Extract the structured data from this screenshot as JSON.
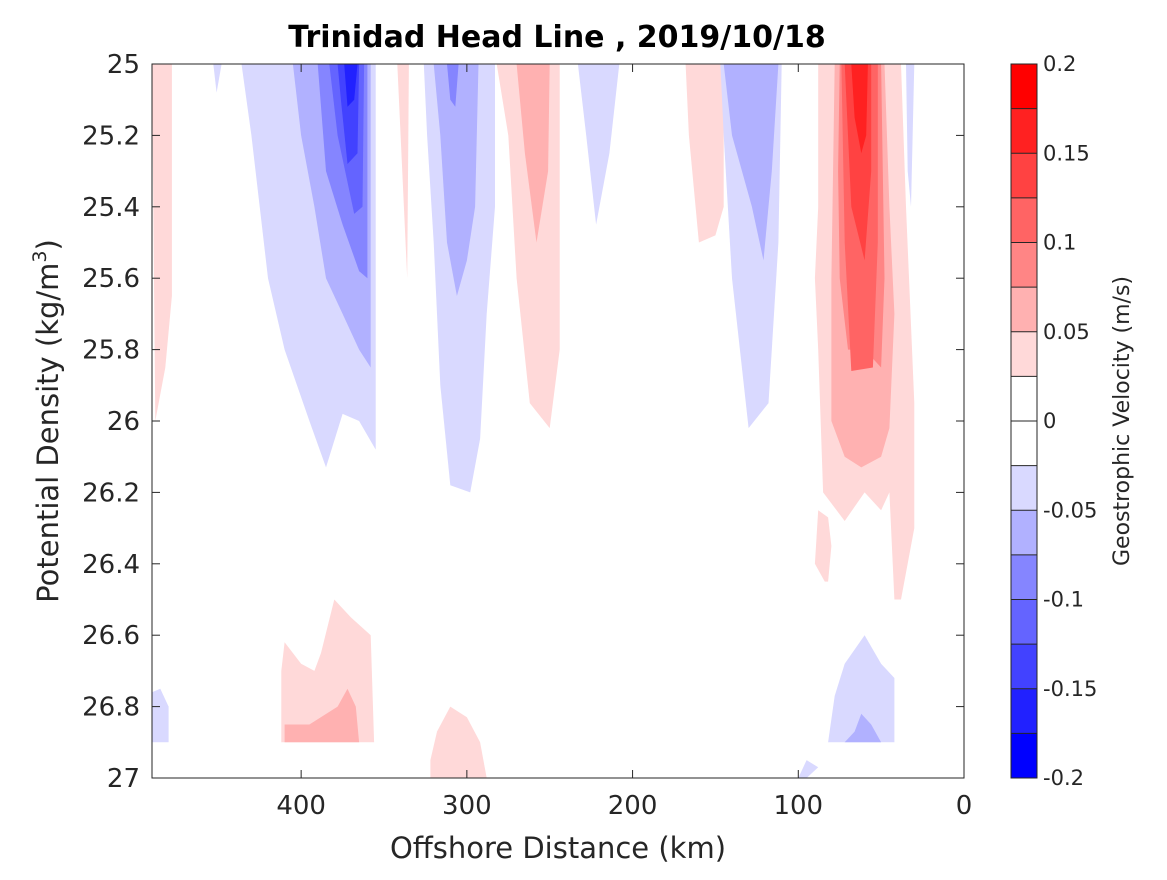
{
  "chart_data": {
    "type": "contourf",
    "title": "Trinidad Head Line , 2019/10/18",
    "xlabel": "Offshore Distance (km)",
    "ylabel": "Potential Density (kg/m",
    "ylabel_sup": "3",
    "ylabel_close": ")",
    "xlim": [
      490,
      0
    ],
    "ylim": [
      27,
      25
    ],
    "y_reversed": true,
    "x_reversed": true,
    "xticks": [
      400,
      300,
      200,
      100,
      0
    ],
    "xtick_labels": [
      "400",
      "300",
      "200",
      "100",
      "0"
    ],
    "yticks": [
      25,
      25.2,
      25.4,
      25.6,
      25.8,
      26,
      26.2,
      26.4,
      26.6,
      26.8,
      27
    ],
    "ytick_labels": [
      "25",
      "25.2",
      "25.4",
      "25.6",
      "25.8",
      "26",
      "26.2",
      "26.4",
      "26.6",
      "26.8",
      "27"
    ],
    "colorbar": {
      "label": "Geostrophic Velocity (m/s)",
      "range": [
        -0.2,
        0.2
      ],
      "ticks": [
        0.2,
        0.15,
        0.1,
        0.05,
        0,
        -0.05,
        -0.1,
        -0.15,
        -0.2
      ],
      "tick_labels": [
        "0.2",
        "0.15",
        "0.1",
        "0.05",
        "0",
        "-0.05",
        "-0.1",
        "-0.15",
        "-0.2"
      ],
      "levels": [
        {
          "min": 0.175,
          "max": 0.2,
          "color": "#ff0000"
        },
        {
          "min": 0.15,
          "max": 0.175,
          "color": "#ff2121"
        },
        {
          "min": 0.125,
          "max": 0.15,
          "color": "#ff4242"
        },
        {
          "min": 0.1,
          "max": 0.125,
          "color": "#ff6464"
        },
        {
          "min": 0.075,
          "max": 0.1,
          "color": "#ff8585"
        },
        {
          "min": 0.05,
          "max": 0.075,
          "color": "#ffb1b1"
        },
        {
          "min": 0.025,
          "max": 0.05,
          "color": "#ffd9d9"
        },
        {
          "min": 0,
          "max": 0.025,
          "color": "#ffffff"
        },
        {
          "min": -0.025,
          "max": 0,
          "color": "#ffffff"
        },
        {
          "min": -0.05,
          "max": -0.025,
          "color": "#d9d9ff"
        },
        {
          "min": -0.075,
          "max": -0.05,
          "color": "#b1b1ff"
        },
        {
          "min": -0.1,
          "max": -0.075,
          "color": "#8585ff"
        },
        {
          "min": -0.125,
          "max": -0.1,
          "color": "#6464ff"
        },
        {
          "min": -0.15,
          "max": -0.125,
          "color": "#4242ff"
        },
        {
          "min": -0.175,
          "max": -0.15,
          "color": "#2121ff"
        },
        {
          "min": -0.2,
          "max": -0.175,
          "color": "#0000ff"
        }
      ]
    },
    "regions": [
      {
        "level": 0.0375,
        "points": [
          [
            490,
            25
          ],
          [
            478,
            25
          ],
          [
            478,
            25.65
          ],
          [
            482,
            25.85
          ],
          [
            488,
            26
          ]
        ]
      },
      {
        "level": 0.0375,
        "points": [
          [
            342,
            25
          ],
          [
            335,
            25
          ],
          [
            336,
            25.6
          ],
          [
            338,
            25.4
          ]
        ]
      },
      {
        "level": 0.0375,
        "points": [
          [
            282,
            25
          ],
          [
            244,
            25
          ],
          [
            244,
            25.8
          ],
          [
            250,
            26.02
          ],
          [
            262,
            25.95
          ],
          [
            270,
            25.6
          ],
          [
            275,
            25.2
          ]
        ]
      },
      {
        "level": 0.0625,
        "points": [
          [
            270,
            25
          ],
          [
            250,
            25
          ],
          [
            251,
            25.3
          ],
          [
            258,
            25.5
          ],
          [
            265,
            25.25
          ]
        ]
      },
      {
        "level": 0.0375,
        "points": [
          [
            168,
            25
          ],
          [
            145,
            25
          ],
          [
            145,
            25.4
          ],
          [
            150,
            25.48
          ],
          [
            160,
            25.5
          ],
          [
            166,
            25.2
          ]
        ]
      },
      {
        "level": 0.0375,
        "points": [
          [
            88,
            25
          ],
          [
            38,
            25
          ],
          [
            35,
            25.4
          ],
          [
            30,
            25.95
          ],
          [
            30,
            26.3
          ],
          [
            38,
            26.5
          ],
          [
            42,
            26.5
          ],
          [
            45,
            26.2
          ],
          [
            50,
            26.25
          ],
          [
            60,
            26.2
          ],
          [
            72,
            26.28
          ],
          [
            85,
            26.2
          ],
          [
            88,
            25.8
          ],
          [
            90,
            25.6
          ],
          [
            88,
            25.4
          ]
        ]
      },
      {
        "level": 0.0625,
        "points": [
          [
            78,
            25
          ],
          [
            48,
            25
          ],
          [
            45,
            25.4
          ],
          [
            42,
            25.7
          ],
          [
            45,
            26.02
          ],
          [
            50,
            26.1
          ],
          [
            62,
            26.13
          ],
          [
            72,
            26.1
          ],
          [
            80,
            26.0
          ],
          [
            80,
            25.6
          ]
        ]
      },
      {
        "level": 0.0875,
        "points": [
          [
            75,
            25
          ],
          [
            50,
            25
          ],
          [
            48,
            25.6
          ],
          [
            50,
            25.85
          ],
          [
            60,
            25.8
          ],
          [
            70,
            25.8
          ],
          [
            75,
            25.6
          ],
          [
            76,
            25.3
          ]
        ]
      },
      {
        "level": 0.1125,
        "points": [
          [
            74,
            25
          ],
          [
            52,
            25
          ],
          [
            52,
            25.5
          ],
          [
            55,
            25.85
          ],
          [
            68,
            25.86
          ],
          [
            72,
            25.5
          ]
        ]
      },
      {
        "level": 0.1375,
        "points": [
          [
            72,
            25
          ],
          [
            56,
            25
          ],
          [
            56,
            25.3
          ],
          [
            60,
            25.55
          ],
          [
            68,
            25.4
          ],
          [
            70,
            25.2
          ]
        ]
      },
      {
        "level": 0.1625,
        "points": [
          [
            68,
            25
          ],
          [
            58,
            25
          ],
          [
            59,
            25.2
          ],
          [
            62,
            25.25
          ],
          [
            66,
            25.15
          ]
        ]
      },
      {
        "level": 0.0375,
        "points": [
          [
            88,
            26.25
          ],
          [
            82,
            26.27
          ],
          [
            80,
            26.35
          ],
          [
            82,
            26.45
          ],
          [
            84,
            26.45
          ],
          [
            90,
            26.4
          ]
        ]
      },
      {
        "level": 0.0375,
        "points": [
          [
            412,
            26.9
          ],
          [
            356,
            26.9
          ],
          [
            358,
            26.6
          ],
          [
            370,
            26.55
          ],
          [
            380,
            26.5
          ],
          [
            388,
            26.65
          ],
          [
            392,
            26.7
          ],
          [
            400,
            26.68
          ],
          [
            410,
            26.62
          ],
          [
            412,
            26.7
          ]
        ]
      },
      {
        "level": 0.0625,
        "points": [
          [
            410,
            26.9
          ],
          [
            365,
            26.9
          ],
          [
            367,
            26.8
          ],
          [
            372,
            26.75
          ],
          [
            378,
            26.8
          ],
          [
            395,
            26.85
          ],
          [
            410,
            26.85
          ]
        ]
      },
      {
        "level": 0.0375,
        "points": [
          [
            322,
            27
          ],
          [
            288,
            27
          ],
          [
            292,
            26.9
          ],
          [
            300,
            26.83
          ],
          [
            310,
            26.8
          ],
          [
            318,
            26.87
          ],
          [
            322,
            26.95
          ]
        ]
      },
      {
        "level": -0.0375,
        "points": [
          [
            453,
            25
          ],
          [
            448,
            25
          ],
          [
            451,
            25.08
          ]
        ]
      },
      {
        "level": -0.0375,
        "points": [
          [
            436,
            25
          ],
          [
            355,
            25
          ],
          [
            355,
            26.08
          ],
          [
            365,
            26.0
          ],
          [
            375,
            25.98
          ],
          [
            385,
            26.13
          ],
          [
            395,
            26.0
          ],
          [
            410,
            25.8
          ],
          [
            420,
            25.6
          ],
          [
            425,
            25.4
          ],
          [
            430,
            25.2
          ]
        ]
      },
      {
        "level": -0.0625,
        "points": [
          [
            405,
            25
          ],
          [
            358,
            25
          ],
          [
            358,
            25.85
          ],
          [
            365,
            25.8
          ],
          [
            375,
            25.7
          ],
          [
            385,
            25.6
          ],
          [
            392,
            25.4
          ],
          [
            400,
            25.2
          ]
        ]
      },
      {
        "level": -0.0875,
        "points": [
          [
            390,
            25
          ],
          [
            360,
            25
          ],
          [
            360,
            25.6
          ],
          [
            365,
            25.58
          ],
          [
            375,
            25.45
          ],
          [
            385,
            25.3
          ]
        ]
      },
      {
        "level": -0.1125,
        "points": [
          [
            383,
            25
          ],
          [
            362,
            25
          ],
          [
            363,
            25.4
          ],
          [
            368,
            25.42
          ],
          [
            378,
            25.2
          ]
        ]
      },
      {
        "level": -0.1375,
        "points": [
          [
            378,
            25
          ],
          [
            365,
            25
          ],
          [
            366,
            25.25
          ],
          [
            372,
            25.28
          ],
          [
            376,
            25.1
          ]
        ]
      },
      {
        "level": -0.1625,
        "points": [
          [
            374,
            25
          ],
          [
            366,
            25
          ],
          [
            368,
            25.1
          ],
          [
            372,
            25.12
          ]
        ]
      },
      {
        "level": -0.0375,
        "points": [
          [
            326,
            25
          ],
          [
            283,
            25
          ],
          [
            283,
            25.4
          ],
          [
            288,
            25.7
          ],
          [
            292,
            26.05
          ],
          [
            298,
            26.2
          ],
          [
            310,
            26.18
          ],
          [
            316,
            25.9
          ],
          [
            320,
            25.5
          ],
          [
            324,
            25.2
          ]
        ]
      },
      {
        "level": -0.0625,
        "points": [
          [
            320,
            25
          ],
          [
            293,
            25
          ],
          [
            295,
            25.4
          ],
          [
            300,
            25.55
          ],
          [
            306,
            25.65
          ],
          [
            312,
            25.5
          ],
          [
            316,
            25.2
          ]
        ]
      },
      {
        "level": -0.0875,
        "points": [
          [
            312,
            25
          ],
          [
            305,
            25
          ],
          [
            307,
            25.12
          ],
          [
            310,
            25.1
          ]
        ]
      },
      {
        "level": -0.0375,
        "points": [
          [
            233,
            25
          ],
          [
            208,
            25
          ],
          [
            214,
            25.25
          ],
          [
            222,
            25.45
          ],
          [
            228,
            25.2
          ]
        ]
      },
      {
        "level": -0.0375,
        "points": [
          [
            147,
            25
          ],
          [
            110,
            25
          ],
          [
            112,
            25.5
          ],
          [
            118,
            25.95
          ],
          [
            130,
            26.02
          ],
          [
            140,
            25.6
          ],
          [
            145,
            25.2
          ]
        ]
      },
      {
        "level": -0.0625,
        "points": [
          [
            145,
            25
          ],
          [
            112,
            25
          ],
          [
            116,
            25.3
          ],
          [
            121,
            25.55
          ],
          [
            128,
            25.4
          ],
          [
            140,
            25.2
          ]
        ]
      },
      {
        "level": -0.0375,
        "points": [
          [
            35,
            25
          ],
          [
            30,
            25
          ],
          [
            32,
            25.4
          ],
          [
            34,
            25.3
          ]
        ]
      },
      {
        "level": -0.0375,
        "points": [
          [
            490,
            26.9
          ],
          [
            480,
            26.9
          ],
          [
            480,
            26.8
          ],
          [
            485,
            26.75
          ],
          [
            490,
            26.76
          ]
        ]
      },
      {
        "level": -0.0375,
        "points": [
          [
            82,
            26.9
          ],
          [
            42,
            26.9
          ],
          [
            42,
            26.72
          ],
          [
            50,
            26.68
          ],
          [
            60,
            26.6
          ],
          [
            72,
            26.68
          ],
          [
            78,
            26.77
          ]
        ]
      },
      {
        "level": -0.0625,
        "points": [
          [
            72,
            26.9
          ],
          [
            50,
            26.9
          ],
          [
            56,
            26.85
          ],
          [
            62,
            26.82
          ],
          [
            66,
            26.87
          ]
        ]
      },
      {
        "level": -0.0375,
        "points": [
          [
            100,
            27
          ],
          [
            95,
            27
          ],
          [
            88,
            26.97
          ],
          [
            95,
            26.95
          ]
        ]
      }
    ]
  }
}
